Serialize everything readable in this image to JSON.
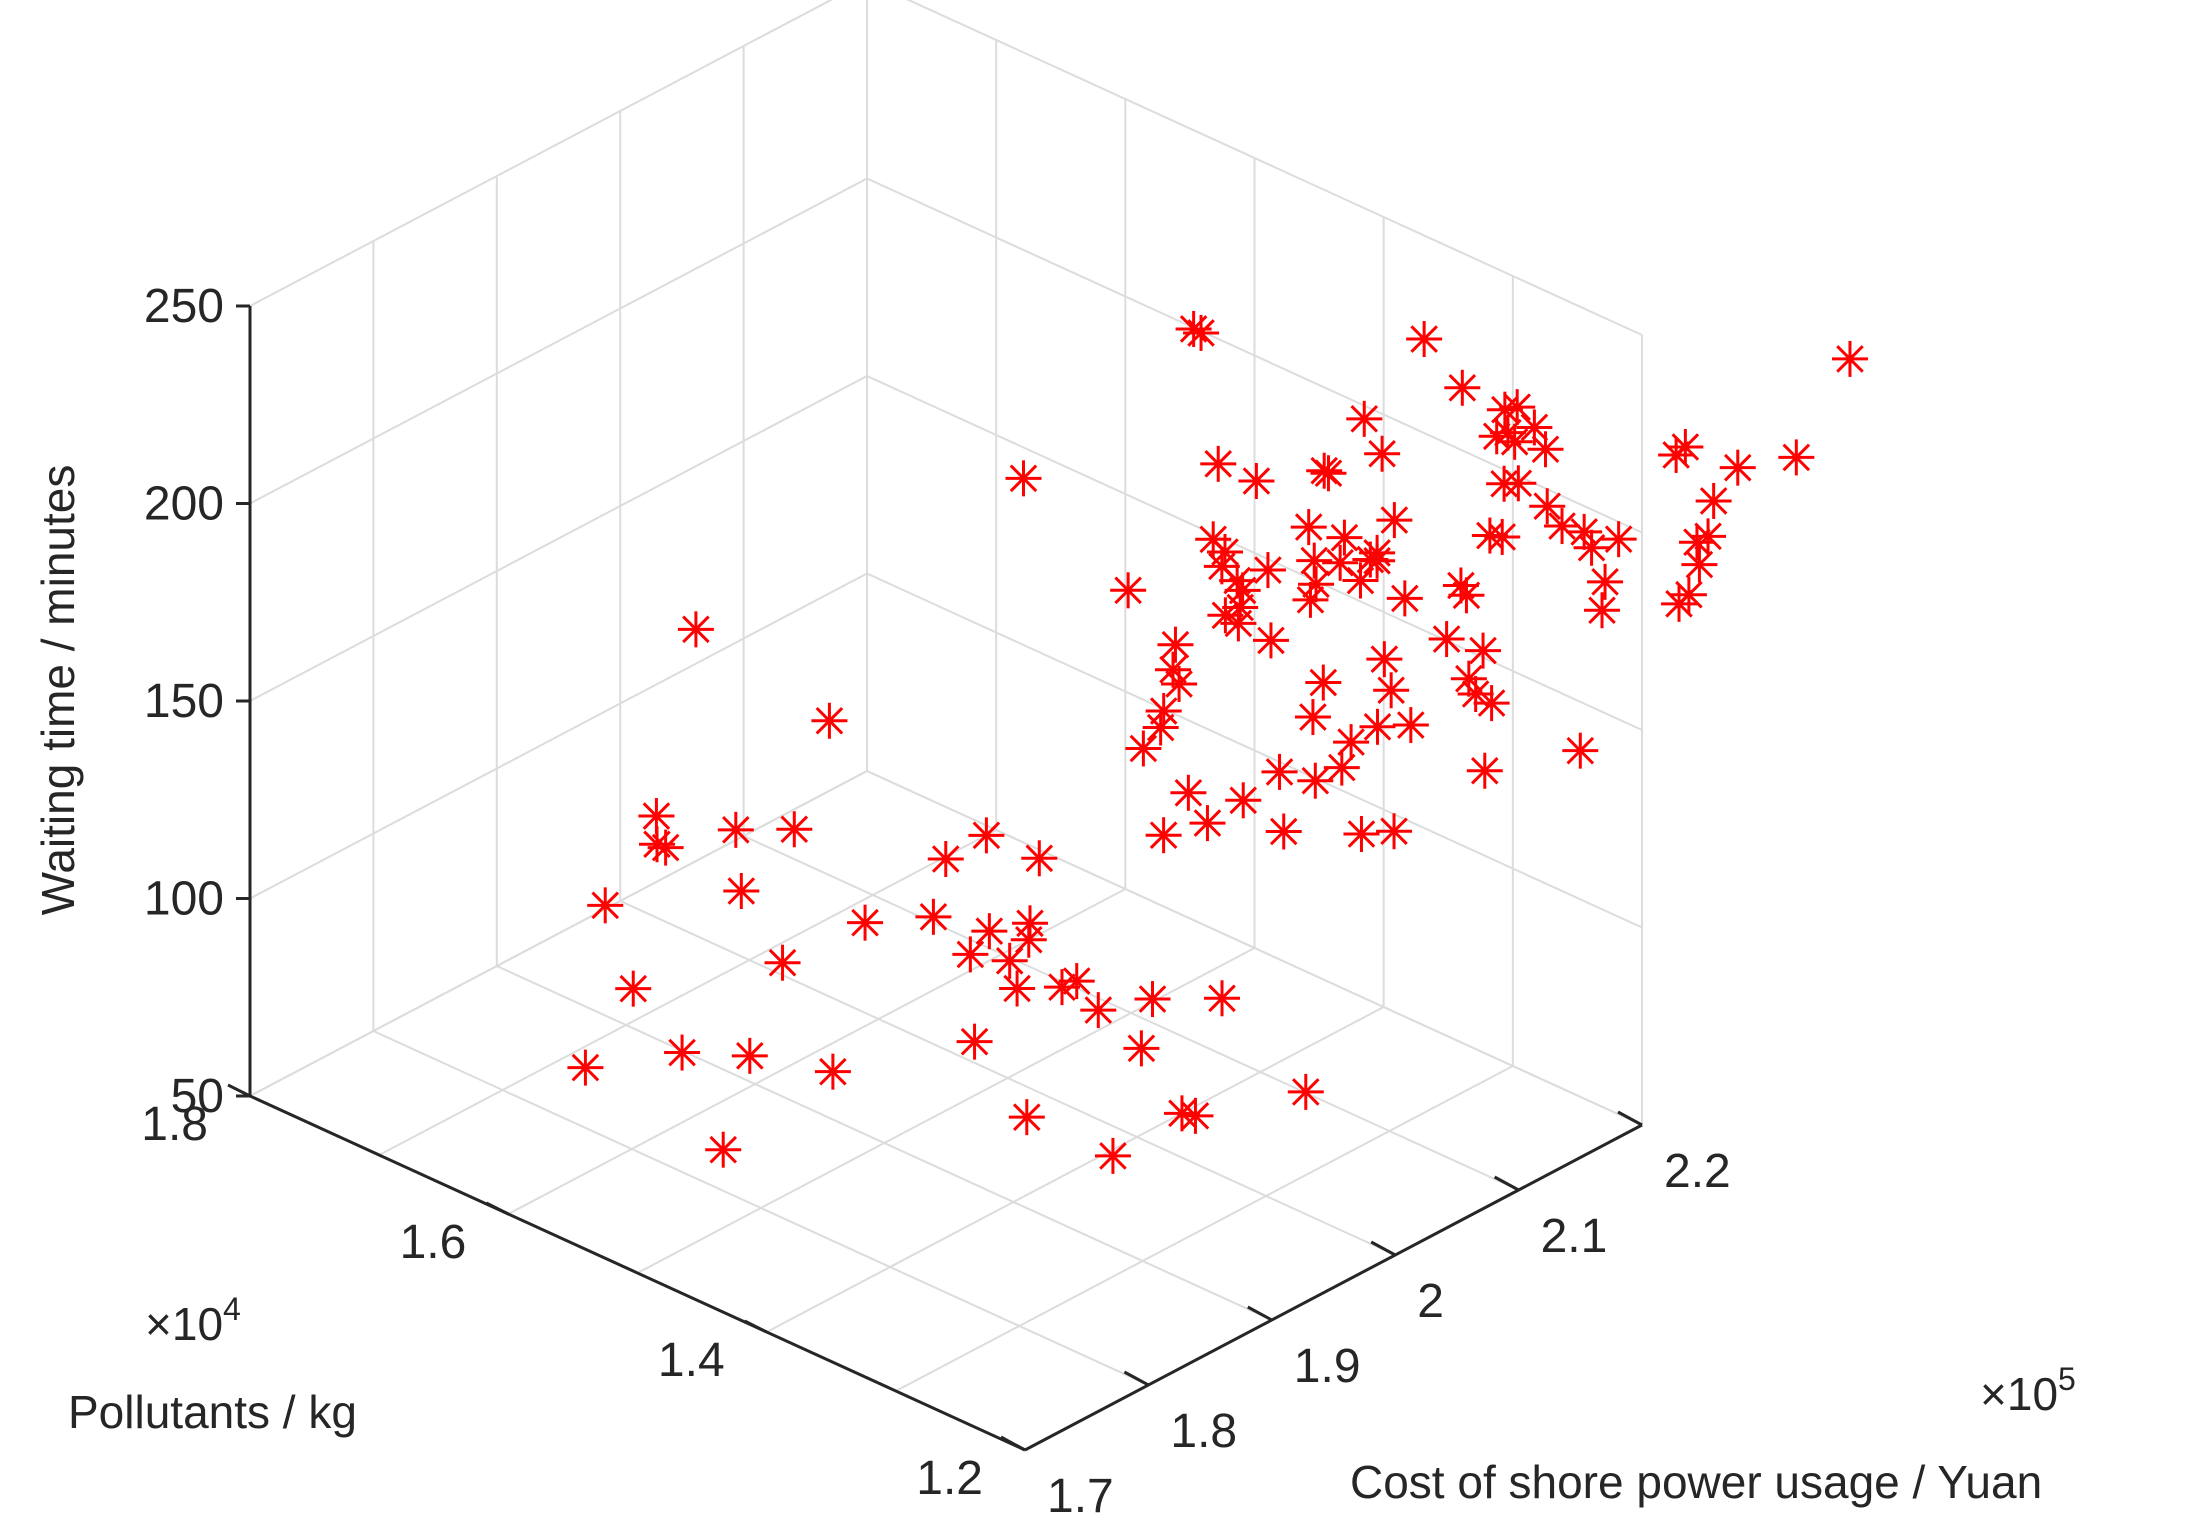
{
  "chart_data": {
    "type": "scatter3d",
    "title": "",
    "xlabel": "Cost of shore power usage / Yuan",
    "ylabel": "Pollutants / kg",
    "zlabel": "Waiting time / minutes",
    "x_multiplier": "×10^5",
    "y_multiplier": "×10^4",
    "xlim": [
      1.7,
      2.2
    ],
    "ylim": [
      1.2,
      1.8
    ],
    "zlim": [
      50,
      250
    ],
    "x_ticks": [
      "1.7",
      "1.8",
      "1.9",
      "2",
      "2.1",
      "2.2"
    ],
    "y_ticks": [
      "1.2",
      "1.4",
      "1.6",
      "1.8"
    ],
    "z_ticks": [
      "50",
      "100",
      "150",
      "200",
      "250"
    ],
    "grid": true,
    "marker": "asterisk",
    "marker_color": "#ff0000",
    "series": [
      {
        "points": [
          [
            1.752,
            1.59,
            80
          ],
          [
            1.759,
            1.49,
            73
          ],
          [
            1.778,
            1.54,
            87
          ],
          [
            1.791,
            1.5,
            90
          ],
          [
            1.81,
            1.59,
            127
          ],
          [
            1.796,
            1.595,
            92
          ],
          [
            1.789,
            1.61,
            112
          ],
          [
            1.806,
            1.45,
            91
          ],
          [
            1.848,
            1.34,
            89
          ],
          [
            1.855,
            1.28,
            87
          ],
          [
            1.858,
            1.39,
            99
          ],
          [
            1.826,
            1.54,
            120
          ],
          [
            1.817,
            1.59,
            125
          ],
          [
            1.832,
            1.55,
            133
          ],
          [
            1.82,
            1.6,
            131
          ],
          [
            1.828,
            1.51,
            106
          ],
          [
            1.848,
            1.52,
            135
          ],
          [
            1.853,
            1.47,
            118
          ],
          [
            1.852,
            1.6,
            173
          ],
          [
            1.866,
            1.51,
            161
          ],
          [
            1.876,
            1.38,
            118
          ],
          [
            1.887,
            1.44,
            133
          ],
          [
            1.887,
            1.35,
            114
          ],
          [
            1.88,
            1.24,
            99
          ],
          [
            1.886,
            1.42,
            112
          ],
          [
            1.877,
            1.44,
            120
          ],
          [
            1.9,
            1.38,
            140
          ],
          [
            1.899,
            1.42,
            140
          ],
          [
            1.87,
            1.39,
            125
          ],
          [
            1.882,
            1.37,
            128
          ],
          [
            1.881,
            1.37,
            124
          ],
          [
            1.878,
            1.33,
            120
          ],
          [
            1.885,
            1.32,
            113
          ],
          [
            1.882,
            1.38,
            110
          ],
          [
            1.899,
            1.3,
            104
          ],
          [
            1.89,
            1.26,
            95
          ],
          [
            1.912,
            1.25,
            122
          ],
          [
            1.908,
            1.3,
            115
          ],
          [
            1.938,
            1.21,
            100
          ],
          [
            1.932,
            1.33,
            170
          ],
          [
            1.917,
            1.3,
            155
          ],
          [
            1.938,
            1.32,
            180
          ],
          [
            1.94,
            1.31,
            188
          ],
          [
            1.946,
            1.33,
            173
          ],
          [
            1.958,
            1.32,
            156
          ],
          [
            1.962,
            1.25,
            156
          ],
          [
            1.958,
            1.33,
            192
          ],
          [
            1.972,
            1.38,
            196
          ],
          [
            1.956,
            1.33,
            186
          ],
          [
            1.963,
            1.31,
            149
          ],
          [
            1.95,
            1.44,
            219
          ],
          [
            1.992,
            1.31,
            150
          ],
          [
            1.99,
            1.28,
            162
          ],
          [
            1.988,
            1.32,
            196
          ],
          [
            2.002,
            1.32,
            200
          ],
          [
            2.009,
            1.33,
            189
          ],
          [
            2.004,
            1.3,
            190
          ],
          [
            2.012,
            1.31,
            205
          ],
          [
            2.015,
            1.27,
            182
          ],
          [
            2.019,
            1.28,
            155
          ],
          [
            2.02,
            1.22,
            151
          ],
          [
            2.03,
            1.27,
            158
          ],
          [
            2.0,
            1.32,
            196
          ],
          [
            2.008,
            1.33,
            200
          ],
          [
            2.027,
            1.36,
            196
          ],
          [
            2.02,
            1.36,
            204
          ],
          [
            2.036,
            1.3,
            195
          ],
          [
            2.051,
            1.31,
            195
          ],
          [
            2.025,
            1.25,
            145
          ],
          [
            2.038,
            1.3,
            165
          ],
          [
            2.038,
            1.25,
            170
          ],
          [
            2.048,
            1.28,
            160
          ],
          [
            2.046,
            1.4,
            247
          ],
          [
            2.052,
            1.4,
            245
          ],
          [
            2.055,
            1.36,
            213
          ],
          [
            2.04,
            1.37,
            196
          ],
          [
            2.045,
            1.38,
            216
          ],
          [
            2.054,
            1.26,
            183
          ],
          [
            2.06,
            1.32,
            198
          ],
          [
            2.074,
            1.31,
            203
          ],
          [
            2.066,
            1.33,
            204
          ],
          [
            2.065,
            1.25,
            166
          ],
          [
            2.07,
            1.27,
            171
          ],
          [
            2.081,
            1.32,
            194
          ],
          [
            2.09,
            1.3,
            198
          ],
          [
            2.094,
            1.25,
            183
          ],
          [
            2.09,
            1.3,
            196
          ],
          [
            2.089,
            1.34,
            213
          ],
          [
            2.087,
            1.31,
            190
          ],
          [
            2.082,
            1.33,
            215
          ],
          [
            2.095,
            1.31,
            194
          ],
          [
            2.104,
            1.3,
            204
          ],
          [
            2.111,
            1.33,
            224
          ],
          [
            2.102,
            1.29,
            186
          ],
          [
            2.115,
            1.32,
            216
          ],
          [
            2.104,
            1.23,
            151
          ],
          [
            2.112,
            1.25,
            170
          ],
          [
            2.12,
            1.24,
            164
          ],
          [
            2.128,
            1.26,
            162
          ],
          [
            2.137,
            1.28,
            185
          ],
          [
            2.134,
            1.26,
            172
          ],
          [
            2.15,
            1.2,
            153
          ],
          [
            2.131,
            1.27,
            185
          ],
          [
            2.15,
            1.27,
            197
          ],
          [
            2.166,
            1.28,
            218
          ],
          [
            2.17,
            1.34,
            233
          ],
          [
            2.16,
            1.27,
            195
          ],
          [
            2.172,
            1.28,
            205
          ],
          [
            2.18,
            1.32,
            222
          ],
          [
            2.191,
            1.29,
            211
          ],
          [
            2.186,
            1.26,
            200
          ],
          [
            2.195,
            1.24,
            195
          ],
          [
            2.191,
            1.22,
            186
          ],
          [
            2.196,
            1.3,
            211
          ],
          [
            2.194,
            1.29,
            200
          ],
          [
            2.201,
            1.24,
            190
          ],
          [
            2.198,
            1.26,
            193
          ],
          [
            2.202,
            1.22,
            195
          ],
          [
            2.207,
            1.29,
            212
          ],
          [
            2.199,
            1.23,
            176
          ],
          [
            2.204,
            1.31,
            214
          ],
          [
            2.214,
            1.31,
            213
          ],
          [
            2.216,
            1.29,
            205
          ],
          [
            2.23,
            1.2,
            177
          ],
          [
            2.238,
            1.2,
            178
          ],
          [
            2.255,
            1.21,
            187
          ],
          [
            2.257,
            1.21,
            181
          ],
          [
            2.264,
            1.21,
            187
          ],
          [
            2.277,
            1.24,
            203
          ],
          [
            2.279,
            1.22,
            192
          ],
          [
            2.28,
            1.25,
            199
          ],
          [
            2.309,
            1.23,
            194
          ],
          [
            2.346,
            1.22,
            192
          ],
          [
            2.379,
            1.21,
            213
          ]
        ]
      }
    ]
  }
}
